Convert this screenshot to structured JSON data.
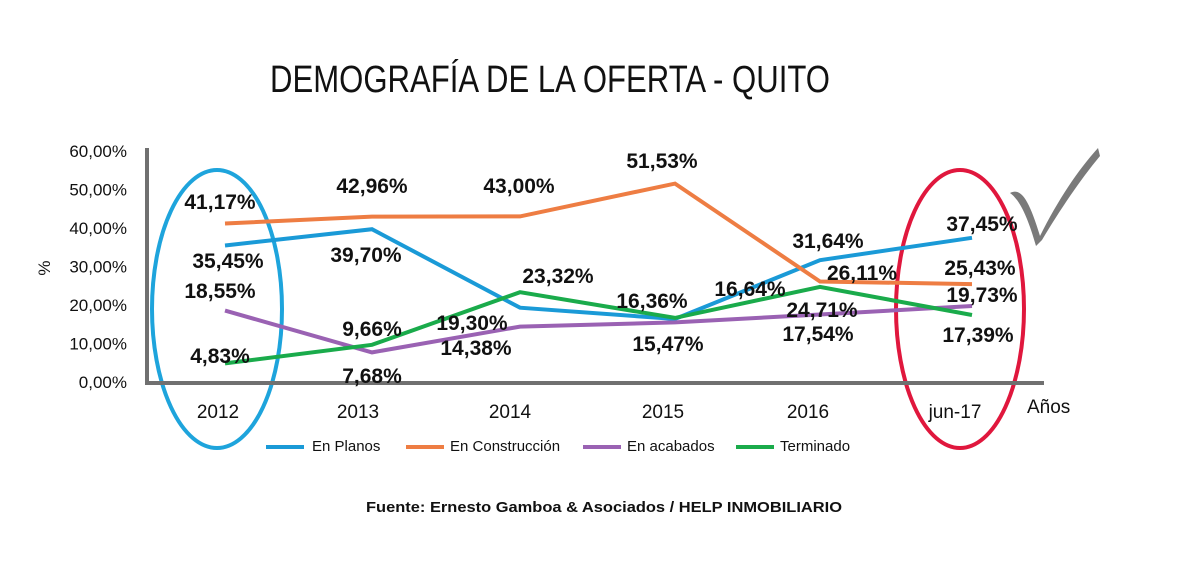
{
  "chart_data": {
    "type": "line",
    "title": "DEMOGRAFÍA DE LA OFERTA - QUITO",
    "xlabel": "Años",
    "ylabel": "%",
    "ylim": [
      0,
      60
    ],
    "yticks": [
      "0,00%",
      "10,00%",
      "20,00%",
      "30,00%",
      "40,00%",
      "50,00%",
      "60,00%"
    ],
    "ytick_values": [
      0,
      10,
      20,
      30,
      40,
      50,
      60
    ],
    "categories": [
      "2012",
      "2013",
      "2014",
      "2015",
      "2016",
      "jun-17"
    ],
    "grid": false,
    "legend_position": "bottom",
    "series": [
      {
        "name": "En Planos",
        "color": "#1a9ad7",
        "values": [
          35.45,
          39.7,
          19.3,
          16.36,
          31.64,
          37.45
        ],
        "labels": [
          "35,45%",
          "39,70%",
          "19,30%",
          "16,36%",
          "31,64%",
          "37,45%"
        ]
      },
      {
        "name": "En Construcción",
        "color": "#ee7d43",
        "values": [
          41.17,
          42.96,
          43.0,
          51.53,
          26.11,
          25.43
        ],
        "labels": [
          "41,17%",
          "42,96%",
          "43,00%",
          "51,53%",
          "26,11%",
          "25,43%"
        ]
      },
      {
        "name": "En acabados",
        "color": "#9a62b3",
        "values": [
          18.55,
          7.68,
          14.38,
          15.47,
          17.54,
          19.73
        ],
        "labels": [
          "18,55%",
          "7,68%",
          "14,38%",
          "15,47%",
          "17,54%",
          "19,73%"
        ]
      },
      {
        "name": "Terminado",
        "color": "#1aab4b",
        "values": [
          4.83,
          9.66,
          23.32,
          16.64,
          24.71,
          17.39
        ],
        "labels": [
          "4,83%",
          "9,66%",
          "23,32%",
          "16,64%",
          "24,71%",
          "17,39%"
        ]
      }
    ],
    "highlights": [
      {
        "category": "2012",
        "color": "#1ea4dc"
      },
      {
        "category": "jun-17",
        "color": "#e0173d"
      }
    ]
  },
  "source": "Fuente: Ernesto Gamboa & Asociados / HELP INMOBILIARIO",
  "checkmark_icon": "check-icon",
  "axis_color": "#707070"
}
